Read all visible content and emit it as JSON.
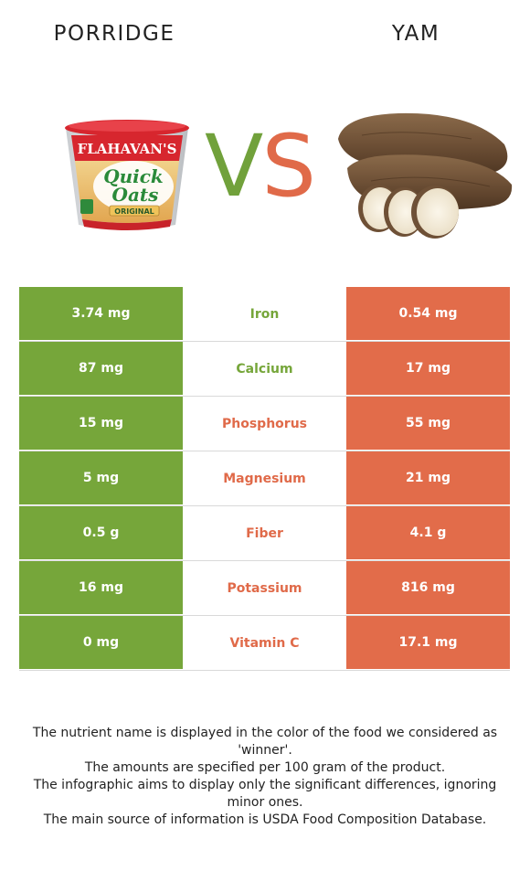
{
  "header": {
    "left_food": "PORRIDGE",
    "right_food": "YAM"
  },
  "vs": {
    "v": "V",
    "s": "S"
  },
  "images": {
    "left": {
      "icon": "porridge-cup-icon",
      "brand": "FLAHAVAN'S",
      "line1": "Quick",
      "line2": "Oats",
      "variant": "ORIGINAL"
    },
    "right": {
      "icon": "yam-tuber-icon"
    }
  },
  "colors": {
    "porridge": "#76a63a",
    "yam": "#e26c4a"
  },
  "rows": [
    {
      "left": "3.74 mg",
      "nutrient": "Iron",
      "right": "0.54 mg",
      "winner": "porridge"
    },
    {
      "left": "87 mg",
      "nutrient": "Calcium",
      "right": "17 mg",
      "winner": "porridge"
    },
    {
      "left": "15 mg",
      "nutrient": "Phosphorus",
      "right": "55 mg",
      "winner": "yam"
    },
    {
      "left": "5 mg",
      "nutrient": "Magnesium",
      "right": "21 mg",
      "winner": "yam"
    },
    {
      "left": "0.5 g",
      "nutrient": "Fiber",
      "right": "4.1 g",
      "winner": "yam"
    },
    {
      "left": "16 mg",
      "nutrient": "Potassium",
      "right": "816 mg",
      "winner": "yam"
    },
    {
      "left": "0 mg",
      "nutrient": "Vitamin C",
      "right": "17.1 mg",
      "winner": "yam"
    }
  ],
  "notes": [
    "The nutrient name is displayed in the color of the food we considered as 'winner'.",
    "The amounts are specified per 100 gram of the product.",
    "The infographic aims to display only the significant differences, ignoring minor ones.",
    "The main source of information is USDA Food Composition Database."
  ]
}
